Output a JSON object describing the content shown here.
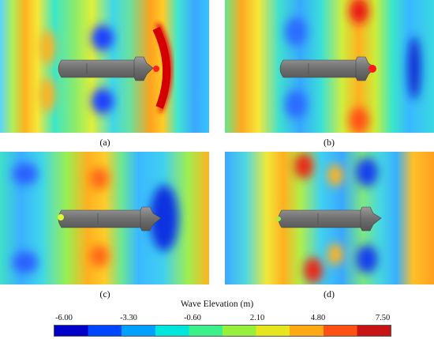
{
  "panels": [
    {
      "label": "(a)"
    },
    {
      "label": "(b)"
    },
    {
      "label": "(c)"
    },
    {
      "label": "(d)"
    }
  ],
  "colorbar": {
    "title": "Wave Elevation (m)",
    "ticks": [
      "-6.00",
      "-3.30",
      "-0.60",
      "2.10",
      "4.80",
      "7.50"
    ],
    "colors": [
      "#0000c8",
      "#0046ff",
      "#00a0ff",
      "#00e6dc",
      "#3cf08c",
      "#96f03c",
      "#e6e61e",
      "#ffaa14",
      "#ff5014",
      "#c81414"
    ]
  }
}
